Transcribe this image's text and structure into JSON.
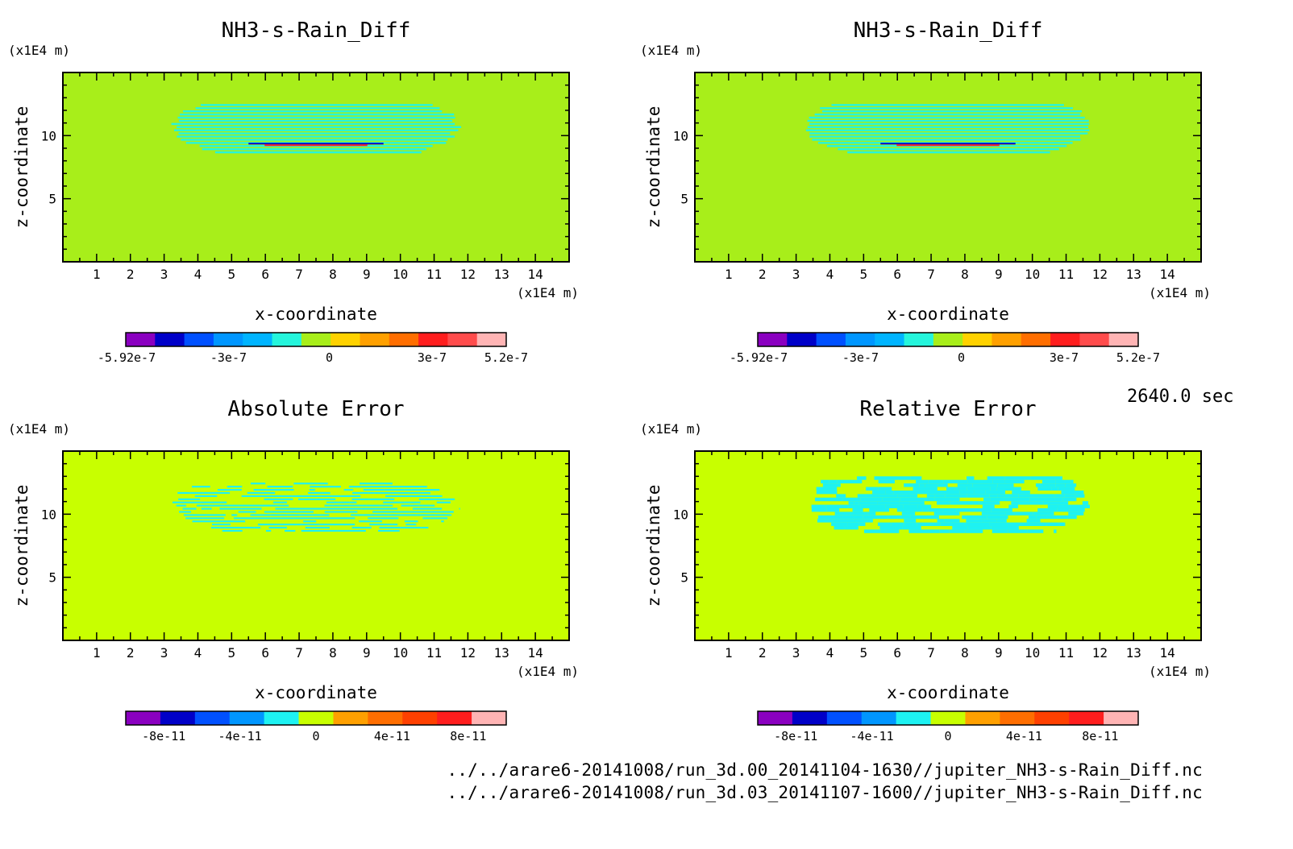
{
  "time_label": "2640.0 sec",
  "file_paths": [
    "../../arare6-20141008/run_3d.00_20141104-1630//jupiter_NH3-s-Rain_Diff.nc",
    "../../arare6-20141008/run_3d.03_20141107-1600//jupiter_NH3-s-Rain_Diff.nc"
  ],
  "colors": {
    "background_field_top": "#a8ee1a",
    "background_field_bottom": "#c8ff00",
    "anomaly_cyan": "#25f5dc",
    "anomaly_cyan_bottom": "#1ef2f2"
  },
  "chart_data": [
    {
      "type": "heatmap",
      "title": "NH3-s-Rain_Diff",
      "xlabel": "x-coordinate",
      "ylabel": "z-coordinate",
      "x_unit_label": "(x1E4 m)",
      "y_unit_label": "(x1E4 m)",
      "xlim": [
        0,
        15
      ],
      "ylim": [
        0,
        15
      ],
      "x_ticks": [
        1,
        2,
        3,
        4,
        5,
        6,
        7,
        8,
        9,
        10,
        11,
        12,
        13,
        14
      ],
      "y_ticks": [
        5,
        10
      ],
      "background": "#a8ee1a",
      "anomaly_color": "#25f5dc",
      "anomaly_region": {
        "x": [
          3,
          12
        ],
        "z": [
          8.5,
          12.5
        ]
      },
      "extreme_band": {
        "x": [
          5.5,
          9.5
        ],
        "z": 9.3,
        "colors": [
          "#0000c8",
          "#ff1e1e"
        ]
      },
      "colorbar": {
        "colors": [
          "#8a00c0",
          "#0000c8",
          "#0050ff",
          "#0096ff",
          "#00b4ff",
          "#25f5dc",
          "#a8ee1a",
          "#ffd200",
          "#ffa000",
          "#ff6e00",
          "#ff1e1e",
          "#ff4c4c",
          "#ffb4b4"
        ],
        "tick_labels": [
          "-5.92e-7",
          "-3e-7",
          "0",
          "3e-7",
          "5.2e-7"
        ]
      }
    },
    {
      "type": "heatmap",
      "title": "NH3-s-Rain_Diff",
      "xlabel": "x-coordinate",
      "ylabel": "z-coordinate",
      "x_unit_label": "(x1E4 m)",
      "y_unit_label": "(x1E4 m)",
      "xlim": [
        0,
        15
      ],
      "ylim": [
        0,
        15
      ],
      "x_ticks": [
        1,
        2,
        3,
        4,
        5,
        6,
        7,
        8,
        9,
        10,
        11,
        12,
        13,
        14
      ],
      "y_ticks": [
        5,
        10
      ],
      "background": "#a8ee1a",
      "anomaly_color": "#25f5dc",
      "anomaly_region": {
        "x": [
          3,
          12
        ],
        "z": [
          8.5,
          12.5
        ]
      },
      "extreme_band": {
        "x": [
          5.5,
          9.5
        ],
        "z": 9.3,
        "colors": [
          "#0000c8",
          "#ff1e1e"
        ]
      },
      "colorbar": {
        "colors": [
          "#8a00c0",
          "#0000c8",
          "#0050ff",
          "#0096ff",
          "#00b4ff",
          "#25f5dc",
          "#a8ee1a",
          "#ffd200",
          "#ffa000",
          "#ff6e00",
          "#ff1e1e",
          "#ff4c4c",
          "#ffb4b4"
        ],
        "tick_labels": [
          "-5.92e-7",
          "-3e-7",
          "0",
          "3e-7",
          "5.2e-7"
        ]
      }
    },
    {
      "type": "heatmap",
      "title": "Absolute Error",
      "xlabel": "x-coordinate",
      "ylabel": "z-coordinate",
      "x_unit_label": "(x1E4 m)",
      "y_unit_label": "(x1E4 m)",
      "xlim": [
        0,
        15
      ],
      "ylim": [
        0,
        15
      ],
      "x_ticks": [
        1,
        2,
        3,
        4,
        5,
        6,
        7,
        8,
        9,
        10,
        11,
        12,
        13,
        14
      ],
      "y_ticks": [
        5,
        10
      ],
      "background": "#c8ff00",
      "anomaly_color": "#1ef2f2",
      "anomaly_region": {
        "x": [
          3,
          12
        ],
        "z": [
          8.5,
          12.5
        ]
      },
      "colorbar": {
        "colors": [
          "#8a00c0",
          "#0000c8",
          "#0050ff",
          "#0096ff",
          "#1ef2f2",
          "#c8ff00",
          "#ffa000",
          "#ff6e00",
          "#ff4000",
          "#ff1e1e",
          "#ffb4b4"
        ],
        "tick_labels": [
          "-8e-11",
          "-4e-11",
          "0",
          "4e-11",
          "8e-11"
        ]
      }
    },
    {
      "type": "heatmap",
      "title": "Relative Error",
      "xlabel": "x-coordinate",
      "ylabel": "z-coordinate",
      "x_unit_label": "(x1E4 m)",
      "y_unit_label": "(x1E4 m)",
      "xlim": [
        0,
        15
      ],
      "ylim": [
        0,
        15
      ],
      "x_ticks": [
        1,
        2,
        3,
        4,
        5,
        6,
        7,
        8,
        9,
        10,
        11,
        12,
        13,
        14
      ],
      "y_ticks": [
        5,
        10
      ],
      "background": "#c8ff00",
      "anomaly_color": "#1ef2f2",
      "anomaly_region": {
        "x": [
          3,
          12
        ],
        "z": [
          8.5,
          13
        ]
      },
      "colorbar": {
        "colors": [
          "#8a00c0",
          "#0000c8",
          "#0050ff",
          "#0096ff",
          "#1ef2f2",
          "#c8ff00",
          "#ffa000",
          "#ff6e00",
          "#ff4000",
          "#ff1e1e",
          "#ffb4b4"
        ],
        "tick_labels": [
          "-8e-11",
          "-4e-11",
          "0",
          "4e-11",
          "8e-11"
        ]
      }
    }
  ]
}
